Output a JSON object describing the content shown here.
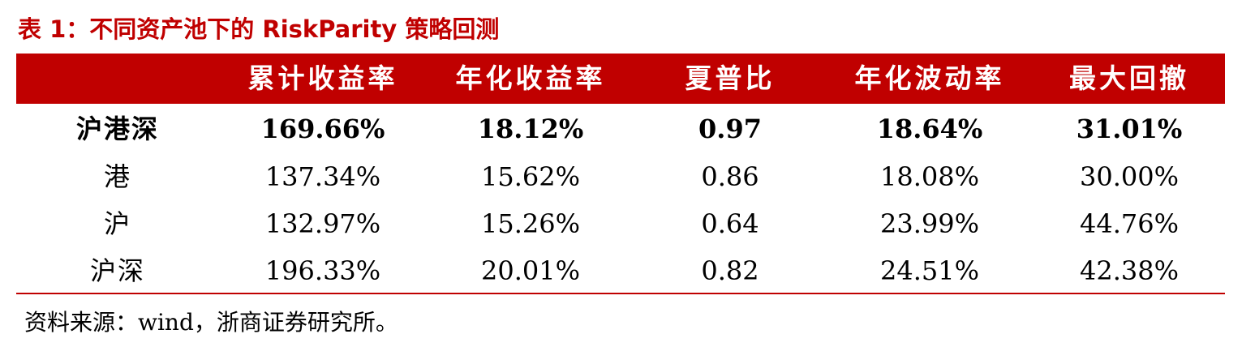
{
  "title": "表 1：不同资产池下的 RiskParity 策略回测",
  "columns": [
    "",
    "累计收益率",
    "年化收益率",
    "夏普比",
    "年化波动率",
    "最大回撤"
  ],
  "rows": [
    {
      "name": "沪港深",
      "cumulative_return": "169.66%",
      "annualized_return": "18.12%",
      "sharpe": "0.97",
      "annualized_volatility": "18.64%",
      "max_drawdown": "31.01%"
    },
    {
      "name": "港",
      "cumulative_return": "137.34%",
      "annualized_return": "15.62%",
      "sharpe": "0.86",
      "annualized_volatility": "18.08%",
      "max_drawdown": "30.00%"
    },
    {
      "name": "沪",
      "cumulative_return": "132.97%",
      "annualized_return": "15.26%",
      "sharpe": "0.64",
      "annualized_volatility": "23.99%",
      "max_drawdown": "44.76%"
    },
    {
      "name": "沪深",
      "cumulative_return": "196.33%",
      "annualized_return": "20.01%",
      "sharpe": "0.82",
      "annualized_volatility": "24.51%",
      "max_drawdown": "42.38%"
    }
  ],
  "source": "资料来源：wind，浙商证券研究所。",
  "colors": {
    "accent": "#c00000",
    "header_text": "#ffffff"
  }
}
